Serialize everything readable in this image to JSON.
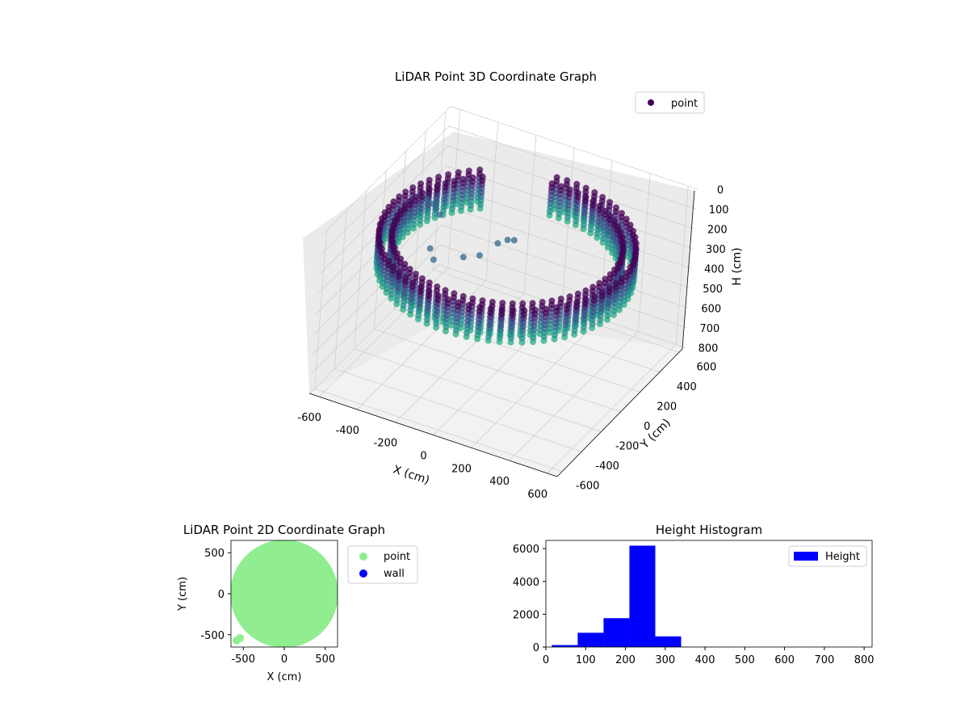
{
  "colors": {
    "point3d": "#440154",
    "point2d": "#90ee90",
    "wall": "#0000ff",
    "histogram": "#0000ff",
    "pane": "#f2f2f2",
    "pane_side": "#ebebeb",
    "grid": "#cccccc"
  },
  "chart_data": [
    {
      "type": "scatter",
      "title": "LiDAR Point 3D Coordinate Graph",
      "xlabel": "X (cm)",
      "ylabel": "Y (cm)",
      "zlabel": "H (cm)",
      "xlim": [
        -650,
        650
      ],
      "ylim": [
        -650,
        650
      ],
      "zlim": [
        0,
        800
      ],
      "z_inverted": true,
      "x_ticks": [
        "-600",
        "-400",
        "-200",
        "0",
        "200",
        "400",
        "600"
      ],
      "y_ticks": [
        "-600",
        "-400",
        "-200",
        "0",
        "200",
        "400",
        "600"
      ],
      "z_ticks": [
        "0",
        "100",
        "200",
        "300",
        "400",
        "500",
        "600",
        "700",
        "800"
      ],
      "legend": {
        "position": "top-right",
        "entries": [
          "point"
        ]
      },
      "grid": true,
      "series": [
        {
          "name": "point",
          "shape": "ring",
          "outer_radius": 600,
          "inner_radius": 540,
          "z_range": [
            140,
            300
          ],
          "rear_opening": {
            "from_deg": 100,
            "to_deg": 125
          },
          "points": [
            {
              "x": -520,
              "y": 180,
              "z": 190
            },
            {
              "x": -470,
              "y": 160,
              "z": 190
            },
            {
              "x": -440,
              "y": 130,
              "z": 190
            },
            {
              "x": -410,
              "y": 110,
              "z": 200
            },
            {
              "x": -300,
              "y": -200,
              "z": 180
            },
            {
              "x": -250,
              "y": -260,
              "z": 190
            },
            {
              "x": -150,
              "y": -150,
              "z": 200
            },
            {
              "x": -100,
              "y": -80,
              "z": 210
            },
            {
              "x": -40,
              "y": -20,
              "z": 160
            },
            {
              "x": 0,
              "y": 0,
              "z": 140
            },
            {
              "x": 20,
              "y": 30,
              "z": 150
            }
          ]
        }
      ]
    },
    {
      "type": "scatter",
      "title": "LiDAR Point 2D Coordinate Graph",
      "xlabel": "X (cm)",
      "ylabel": "Y (cm)",
      "xlim": [
        -650,
        650
      ],
      "ylim": [
        -650,
        650
      ],
      "x_ticks": [
        "-500",
        "0",
        "500"
      ],
      "y_ticks": [
        "-500",
        "0",
        "500"
      ],
      "legend": {
        "position": "outside-right",
        "entries": [
          "point",
          "wall"
        ]
      },
      "series": [
        {
          "name": "point",
          "shape": "disk",
          "center": [
            0,
            0
          ],
          "radius": 600,
          "notch": {
            "x_from": -450,
            "x_to": -300,
            "y": 0
          },
          "points": [
            {
              "x": -580,
              "y": -570
            },
            {
              "x": -540,
              "y": -540
            }
          ]
        },
        {
          "name": "wall",
          "points": []
        }
      ]
    },
    {
      "type": "bar",
      "title": "Height Histogram",
      "xlabel": "",
      "ylabel": "",
      "xlim": [
        0,
        820
      ],
      "ylim": [
        0,
        6500
      ],
      "x_ticks": [
        "0",
        "100",
        "200",
        "300",
        "400",
        "500",
        "600",
        "700",
        "800"
      ],
      "y_ticks": [
        "0",
        "2000",
        "4000",
        "6000"
      ],
      "legend": {
        "position": "top-right",
        "entries": [
          "Height"
        ]
      },
      "series": [
        {
          "name": "Height",
          "bins": [
            {
              "from": 15,
              "to": 80,
              "count": 120
            },
            {
              "from": 80,
              "to": 145,
              "count": 870
            },
            {
              "from": 145,
              "to": 210,
              "count": 1760
            },
            {
              "from": 210,
              "to": 275,
              "count": 6180
            },
            {
              "from": 275,
              "to": 340,
              "count": 650
            },
            {
              "from": 340,
              "to": 405,
              "count": 15
            },
            {
              "from": 405,
              "to": 470,
              "count": 8
            },
            {
              "from": 470,
              "to": 535,
              "count": 6
            },
            {
              "from": 535,
              "to": 600,
              "count": 5
            },
            {
              "from": 600,
              "to": 665,
              "count": 4
            },
            {
              "from": 665,
              "to": 730,
              "count": 3
            },
            {
              "from": 730,
              "to": 795,
              "count": 3
            }
          ]
        }
      ]
    }
  ]
}
